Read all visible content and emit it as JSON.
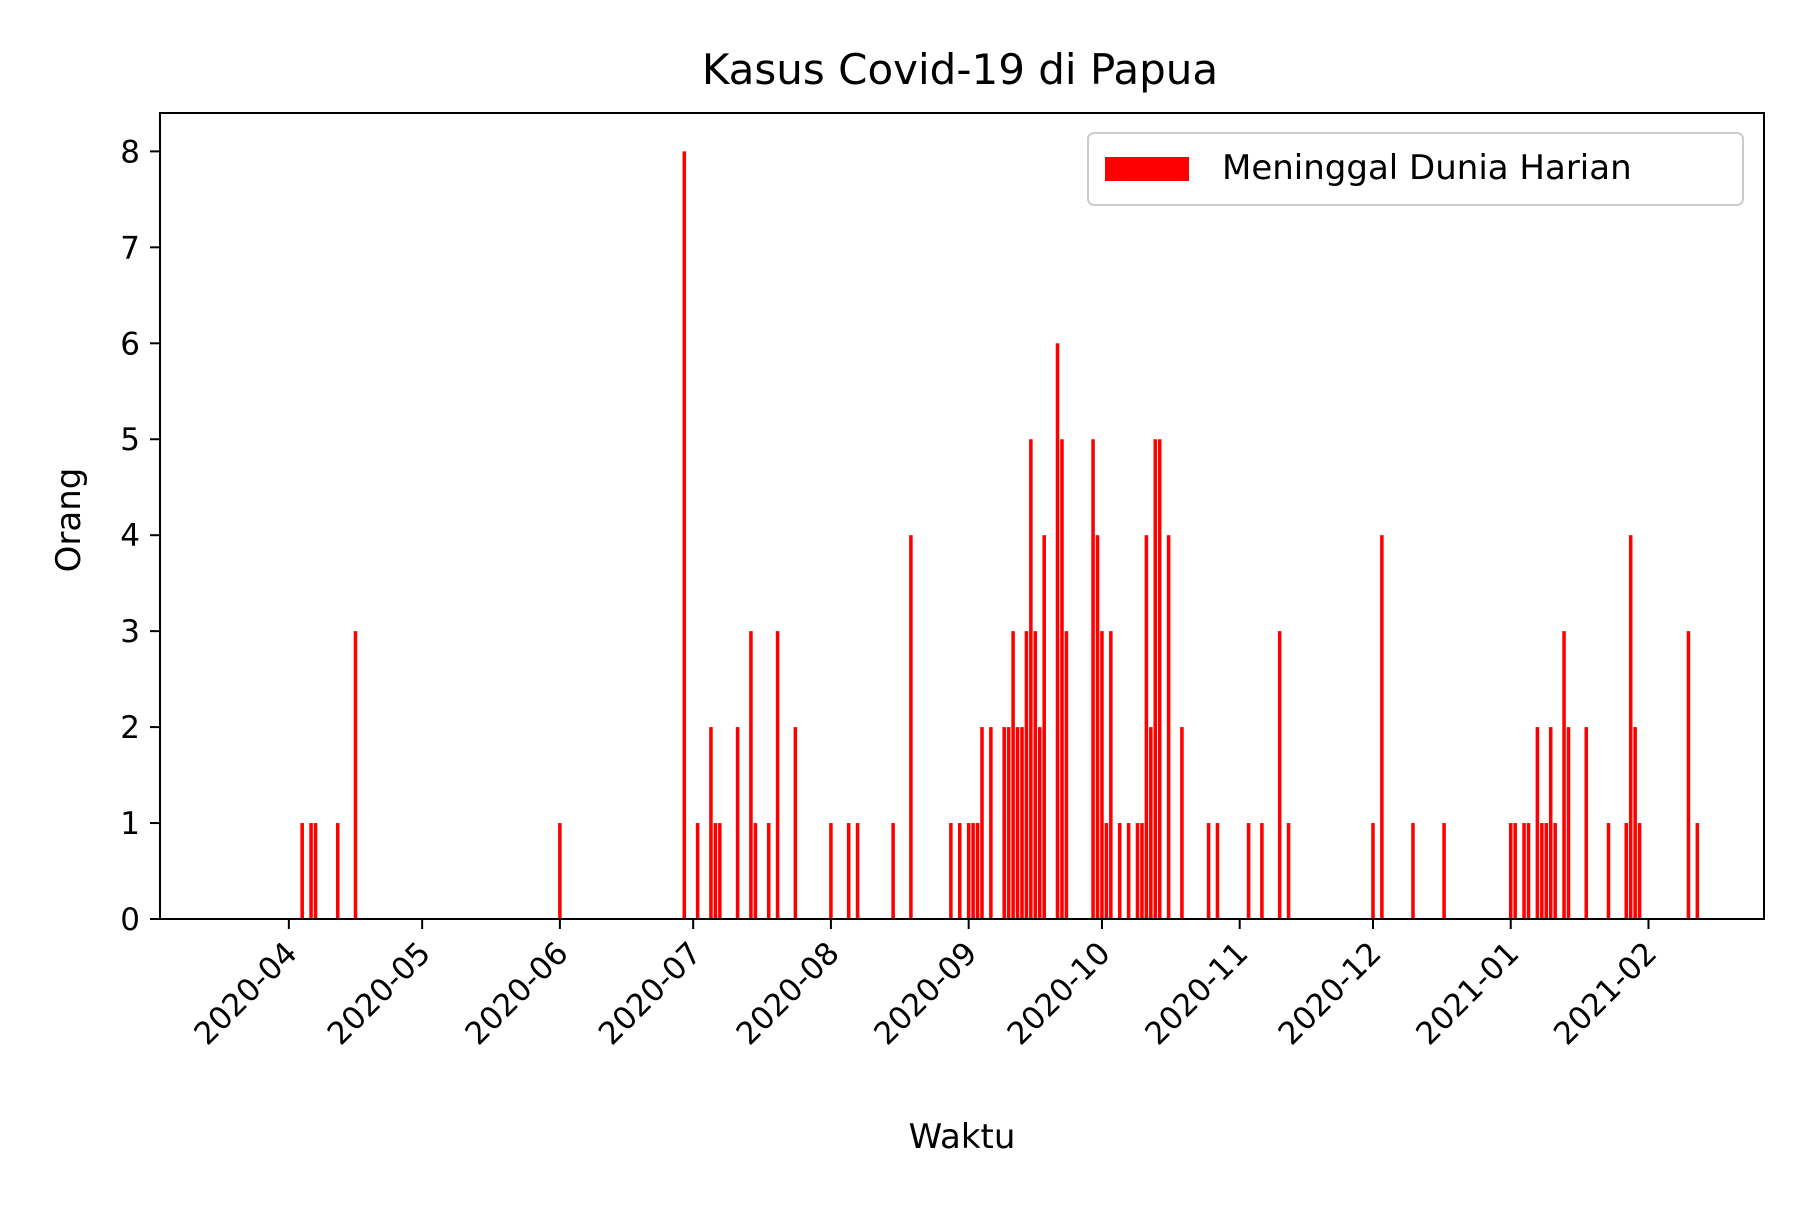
{
  "chart_data": {
    "type": "bar",
    "title": "Kasus Covid-19 di Papua",
    "xlabel": "Waktu",
    "ylabel": "Orang",
    "xlim": [
      "2020-03-03",
      "2021-02-27"
    ],
    "ylim": [
      0,
      8.4
    ],
    "yticks": [
      0,
      1,
      2,
      3,
      4,
      5,
      6,
      7,
      8
    ],
    "xticks": [
      "2020-04",
      "2020-05",
      "2020-06",
      "2020-07",
      "2020-08",
      "2020-09",
      "2020-10",
      "2020-11",
      "2020-12",
      "2021-01",
      "2021-02"
    ],
    "legend_position": "top-right",
    "grid": false,
    "bar_color": "#ff0000",
    "series": [
      {
        "name": "Meninggal Dunia Harian",
        "x": [
          "2020-04-04",
          "2020-04-06",
          "2020-04-07",
          "2020-04-12",
          "2020-04-16",
          "2020-06-01",
          "2020-06-29",
          "2020-07-02",
          "2020-07-05",
          "2020-07-06",
          "2020-07-07",
          "2020-07-11",
          "2020-07-14",
          "2020-07-15",
          "2020-07-18",
          "2020-07-20",
          "2020-07-24",
          "2020-08-01",
          "2020-08-05",
          "2020-08-07",
          "2020-08-15",
          "2020-08-19",
          "2020-08-28",
          "2020-08-30",
          "2020-09-01",
          "2020-09-02",
          "2020-09-03",
          "2020-09-04",
          "2020-09-06",
          "2020-09-09",
          "2020-09-10",
          "2020-09-11",
          "2020-09-12",
          "2020-09-13",
          "2020-09-14",
          "2020-09-15",
          "2020-09-16",
          "2020-09-17",
          "2020-09-18",
          "2020-09-21",
          "2020-09-22",
          "2020-09-23",
          "2020-09-29",
          "2020-09-30",
          "2020-10-01",
          "2020-10-02",
          "2020-10-03",
          "2020-10-05",
          "2020-10-07",
          "2020-10-09",
          "2020-10-10",
          "2020-10-11",
          "2020-10-12",
          "2020-10-13",
          "2020-10-14",
          "2020-10-16",
          "2020-10-19",
          "2020-10-25",
          "2020-10-27",
          "2020-11-03",
          "2020-11-06",
          "2020-11-10",
          "2020-11-12",
          "2020-12-01",
          "2020-12-03",
          "2020-12-10",
          "2020-12-17",
          "2021-01-01",
          "2021-01-02",
          "2021-01-04",
          "2021-01-05",
          "2021-01-07",
          "2021-01-08",
          "2021-01-09",
          "2021-01-10",
          "2021-01-11",
          "2021-01-13",
          "2021-01-14",
          "2021-01-18",
          "2021-01-23",
          "2021-01-27",
          "2021-01-28",
          "2021-01-29",
          "2021-01-30",
          "2021-02-10",
          "2021-02-12"
        ],
        "values": [
          1,
          1,
          1,
          1,
          3,
          1,
          8,
          1,
          2,
          1,
          1,
          2,
          3,
          1,
          1,
          3,
          2,
          1,
          1,
          1,
          1,
          4,
          1,
          1,
          1,
          1,
          1,
          2,
          2,
          2,
          2,
          3,
          2,
          2,
          3,
          5,
          3,
          2,
          4,
          6,
          5,
          3,
          5,
          4,
          3,
          1,
          3,
          1,
          1,
          1,
          1,
          4,
          2,
          5,
          5,
          4,
          2,
          1,
          1,
          1,
          1,
          3,
          1,
          1,
          4,
          1,
          1,
          1,
          1,
          1,
          1,
          2,
          1,
          1,
          2,
          1,
          3,
          2,
          2,
          1,
          1,
          4,
          2,
          1,
          3,
          1
        ]
      }
    ]
  }
}
